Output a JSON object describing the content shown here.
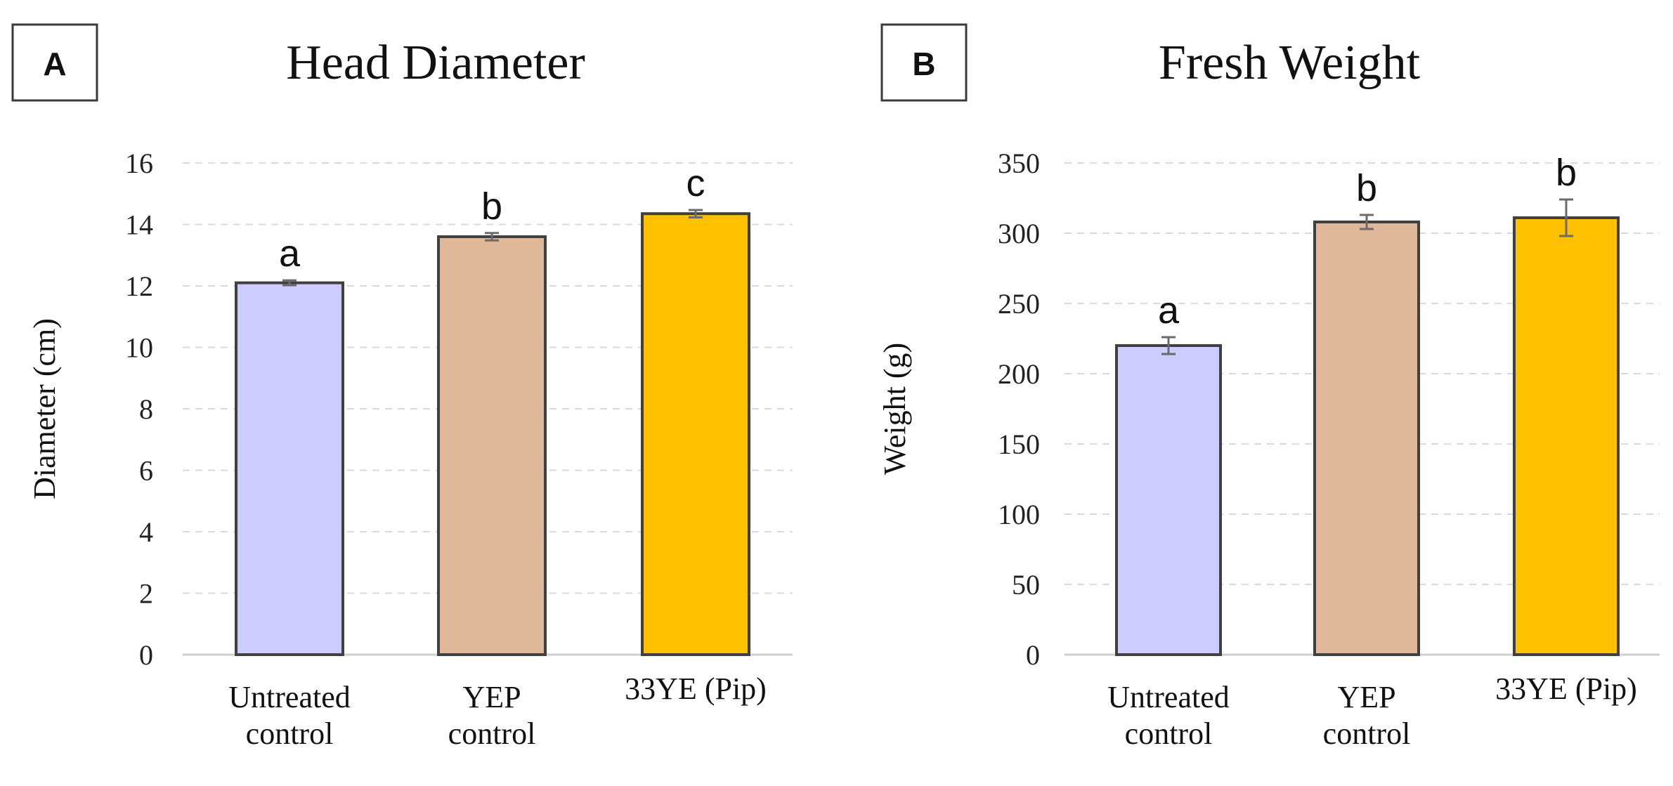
{
  "chart_data": [
    {
      "type": "bar",
      "panel": "A",
      "title": "Head Diameter",
      "xlabel": "",
      "ylabel": "Diameter (cm)",
      "ylim": [
        0,
        16
      ],
      "yticks": [
        0,
        2,
        4,
        6,
        8,
        10,
        12,
        14,
        16
      ],
      "grid": true,
      "categories": [
        [
          "Untreated",
          "control"
        ],
        [
          "YEP",
          "control"
        ],
        [
          "33YE (Pip)"
        ]
      ],
      "values": [
        12.1,
        13.6,
        14.35
      ],
      "errors": [
        0.08,
        0.12,
        0.12
      ],
      "significance": [
        "a",
        "b",
        "c"
      ],
      "colors": [
        "#ccccff",
        "#deb898",
        "#ffc000"
      ]
    },
    {
      "type": "bar",
      "panel": "B",
      "title": "Fresh Weight",
      "xlabel": "",
      "ylabel": "Weight (g)",
      "ylim": [
        0,
        350
      ],
      "yticks": [
        0,
        50,
        100,
        150,
        200,
        250,
        300,
        350
      ],
      "grid": true,
      "categories": [
        [
          "Untreated",
          "control"
        ],
        [
          "YEP",
          "control"
        ],
        [
          "33YE (Pip)"
        ]
      ],
      "values": [
        220,
        308,
        311
      ],
      "errors": [
        6,
        5,
        13
      ],
      "significance": [
        "a",
        "b",
        "b"
      ],
      "colors": [
        "#ccccff",
        "#deb898",
        "#ffc000"
      ]
    }
  ]
}
